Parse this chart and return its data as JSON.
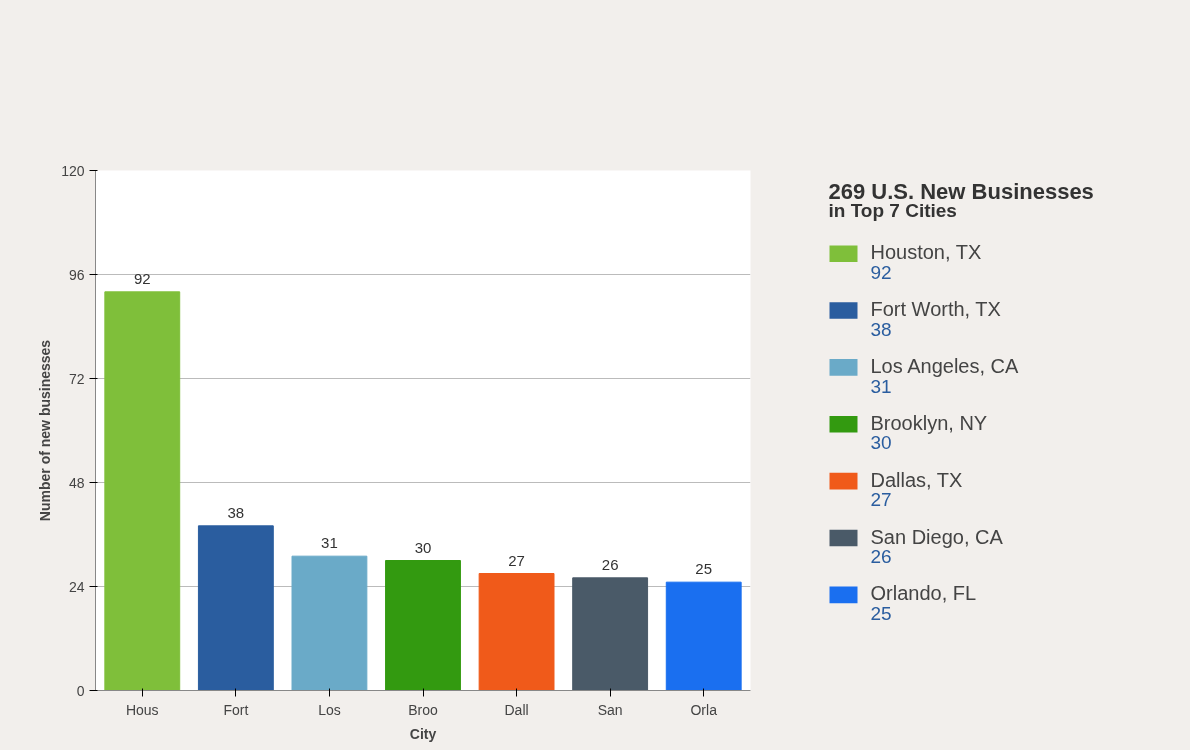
{
  "chart_data": {
    "type": "bar",
    "title": "269 U.S. New Businesses",
    "subtitle": "in Top 7 Cities",
    "xlabel": "City",
    "ylabel": "Number of new businesses",
    "categories": [
      "Hous",
      "Fort",
      "Los",
      "Broo",
      "Dall",
      "San",
      "Orla"
    ],
    "series": [
      {
        "name": "Houston, TX",
        "color": "#7fbf3a",
        "values": [
          92,
          null,
          null,
          null,
          null,
          null,
          null
        ]
      },
      {
        "name": "Fort Worth, TX",
        "color": "#2a5d9f",
        "values": [
          null,
          38,
          null,
          null,
          null,
          null,
          null
        ]
      },
      {
        "name": "Los Angeles, CA",
        "color": "#6aaac8",
        "values": [
          null,
          null,
          31,
          null,
          null,
          null,
          null
        ]
      },
      {
        "name": "Brooklyn, NY",
        "color": "#339a10",
        "values": [
          null,
          null,
          null,
          30,
          null,
          null,
          null
        ]
      },
      {
        "name": "Dallas, TX",
        "color": "#f05a1a",
        "values": [
          null,
          null,
          null,
          null,
          27,
          null,
          null
        ]
      },
      {
        "name": "San Diego, CA",
        "color": "#4a5a68",
        "values": [
          null,
          null,
          null,
          null,
          null,
          26,
          null
        ]
      },
      {
        "name": "Orlando, FL",
        "color": "#1a6ff0",
        "values": [
          null,
          null,
          null,
          null,
          null,
          null,
          25
        ]
      }
    ],
    "annotations": [
      "92",
      "38",
      "31",
      "30",
      "27",
      "26",
      "25"
    ],
    "ylim": [
      0,
      120
    ],
    "yticks": [
      0,
      24,
      48,
      72,
      96,
      120
    ],
    "grid": "y",
    "legend": "right",
    "data_labels": true
  }
}
